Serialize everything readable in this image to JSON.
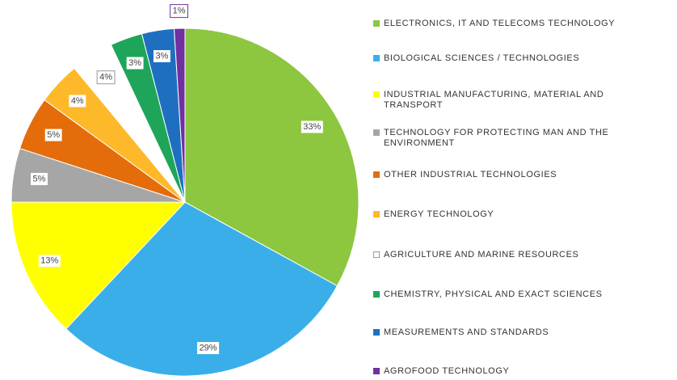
{
  "chart_data": {
    "type": "pie",
    "categories": [
      "ELECTRONICS, IT AND TELECOMS TECHNOLOGY",
      "BIOLOGICAL SCIENCES / TECHNOLOGIES",
      "INDUSTRIAL MANUFACTURING, MATERIAL AND TRANSPORT",
      "TECHNOLOGY FOR PROTECTING MAN AND THE ENVIRONMENT",
      "OTHER INDUSTRIAL TECHNOLOGIES",
      "ENERGY TECHNOLOGY",
      "AGRICULTURE AND MARINE RESOURCES",
      "CHEMISTRY, PHYSICAL AND EXACT SCIENCES",
      "MEASUREMENTS AND STANDARDS",
      "AGROFOOD TECHNOLOGY"
    ],
    "values": [
      33,
      29,
      13,
      5,
      5,
      4,
      4,
      3,
      3,
      1
    ],
    "value_labels": [
      "33%",
      "29%",
      "13%",
      "5%",
      "5%",
      "4%",
      "4%",
      "3%",
      "3%",
      "1%"
    ],
    "colors": [
      "#8dc63f",
      "#3aaee8",
      "#ffff00",
      "#a6a6a6",
      "#e46c0a",
      "#fdb92a",
      "#ffffff",
      "#1fa55a",
      "#1f6fc0",
      "#7030a0"
    ],
    "legend": "right"
  }
}
